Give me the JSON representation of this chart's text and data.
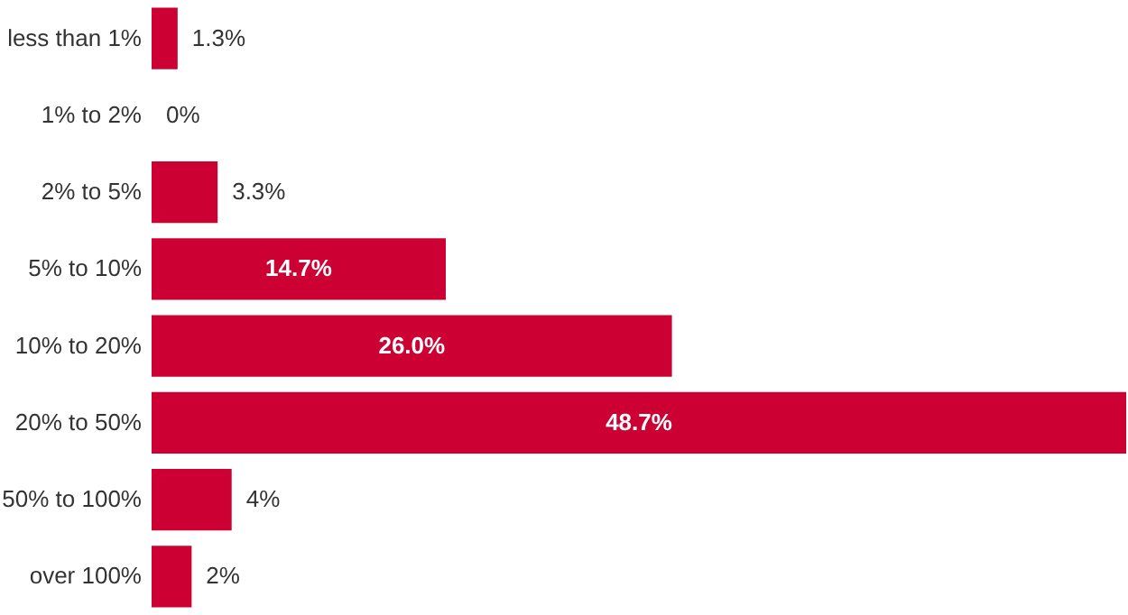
{
  "chart_data": {
    "type": "bar",
    "orientation": "horizontal",
    "categories": [
      "less than 1%",
      "1% to 2%",
      "2% to 5%",
      "5% to 10%",
      "10% to 20%",
      "20% to 50%",
      "50% to 100%",
      "over 100%"
    ],
    "values": [
      1.3,
      0,
      3.3,
      14.7,
      26.0,
      48.7,
      4,
      2
    ],
    "value_labels": [
      "1.3%",
      "0%",
      "3.3%",
      "14.7%",
      "26.0%",
      "48.7%",
      "4%",
      "2%"
    ],
    "color": "#cc0033",
    "xlim": [
      0,
      48.7
    ],
    "tick_labels": "y"
  }
}
